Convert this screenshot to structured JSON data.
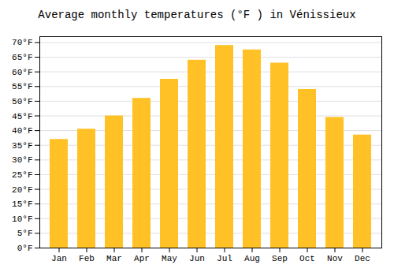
{
  "chart_data": {
    "type": "bar",
    "title": "Average monthly temperatures (°F ) in Vénissieux",
    "categories": [
      "Jan",
      "Feb",
      "Mar",
      "Apr",
      "May",
      "Jun",
      "Jul",
      "Aug",
      "Sep",
      "Oct",
      "Nov",
      "Dec"
    ],
    "values": [
      37,
      40.5,
      45,
      51,
      57.5,
      64,
      69,
      67.5,
      63,
      54,
      44.5,
      38.5
    ],
    "color": "#FFC125",
    "ylim": [
      0,
      72
    ],
    "yticks": [
      {
        "value": 0,
        "label": "0°F"
      },
      {
        "value": 5,
        "label": "5°F"
      },
      {
        "value": 10,
        "label": "10°F"
      },
      {
        "value": 15,
        "label": "15°F"
      },
      {
        "value": 20,
        "label": "20°F"
      },
      {
        "value": 25,
        "label": "25°F"
      },
      {
        "value": 30,
        "label": "30°F"
      },
      {
        "value": 35,
        "label": "35°F"
      },
      {
        "value": 40,
        "label": "40°F"
      },
      {
        "value": 45,
        "label": "45°F"
      },
      {
        "value": 50,
        "label": "50°F"
      },
      {
        "value": 55,
        "label": "55°F"
      },
      {
        "value": 60,
        "label": "60°F"
      },
      {
        "value": 65,
        "label": "65°F"
      },
      {
        "value": 70,
        "label": "70°F"
      }
    ],
    "grid": true
  }
}
